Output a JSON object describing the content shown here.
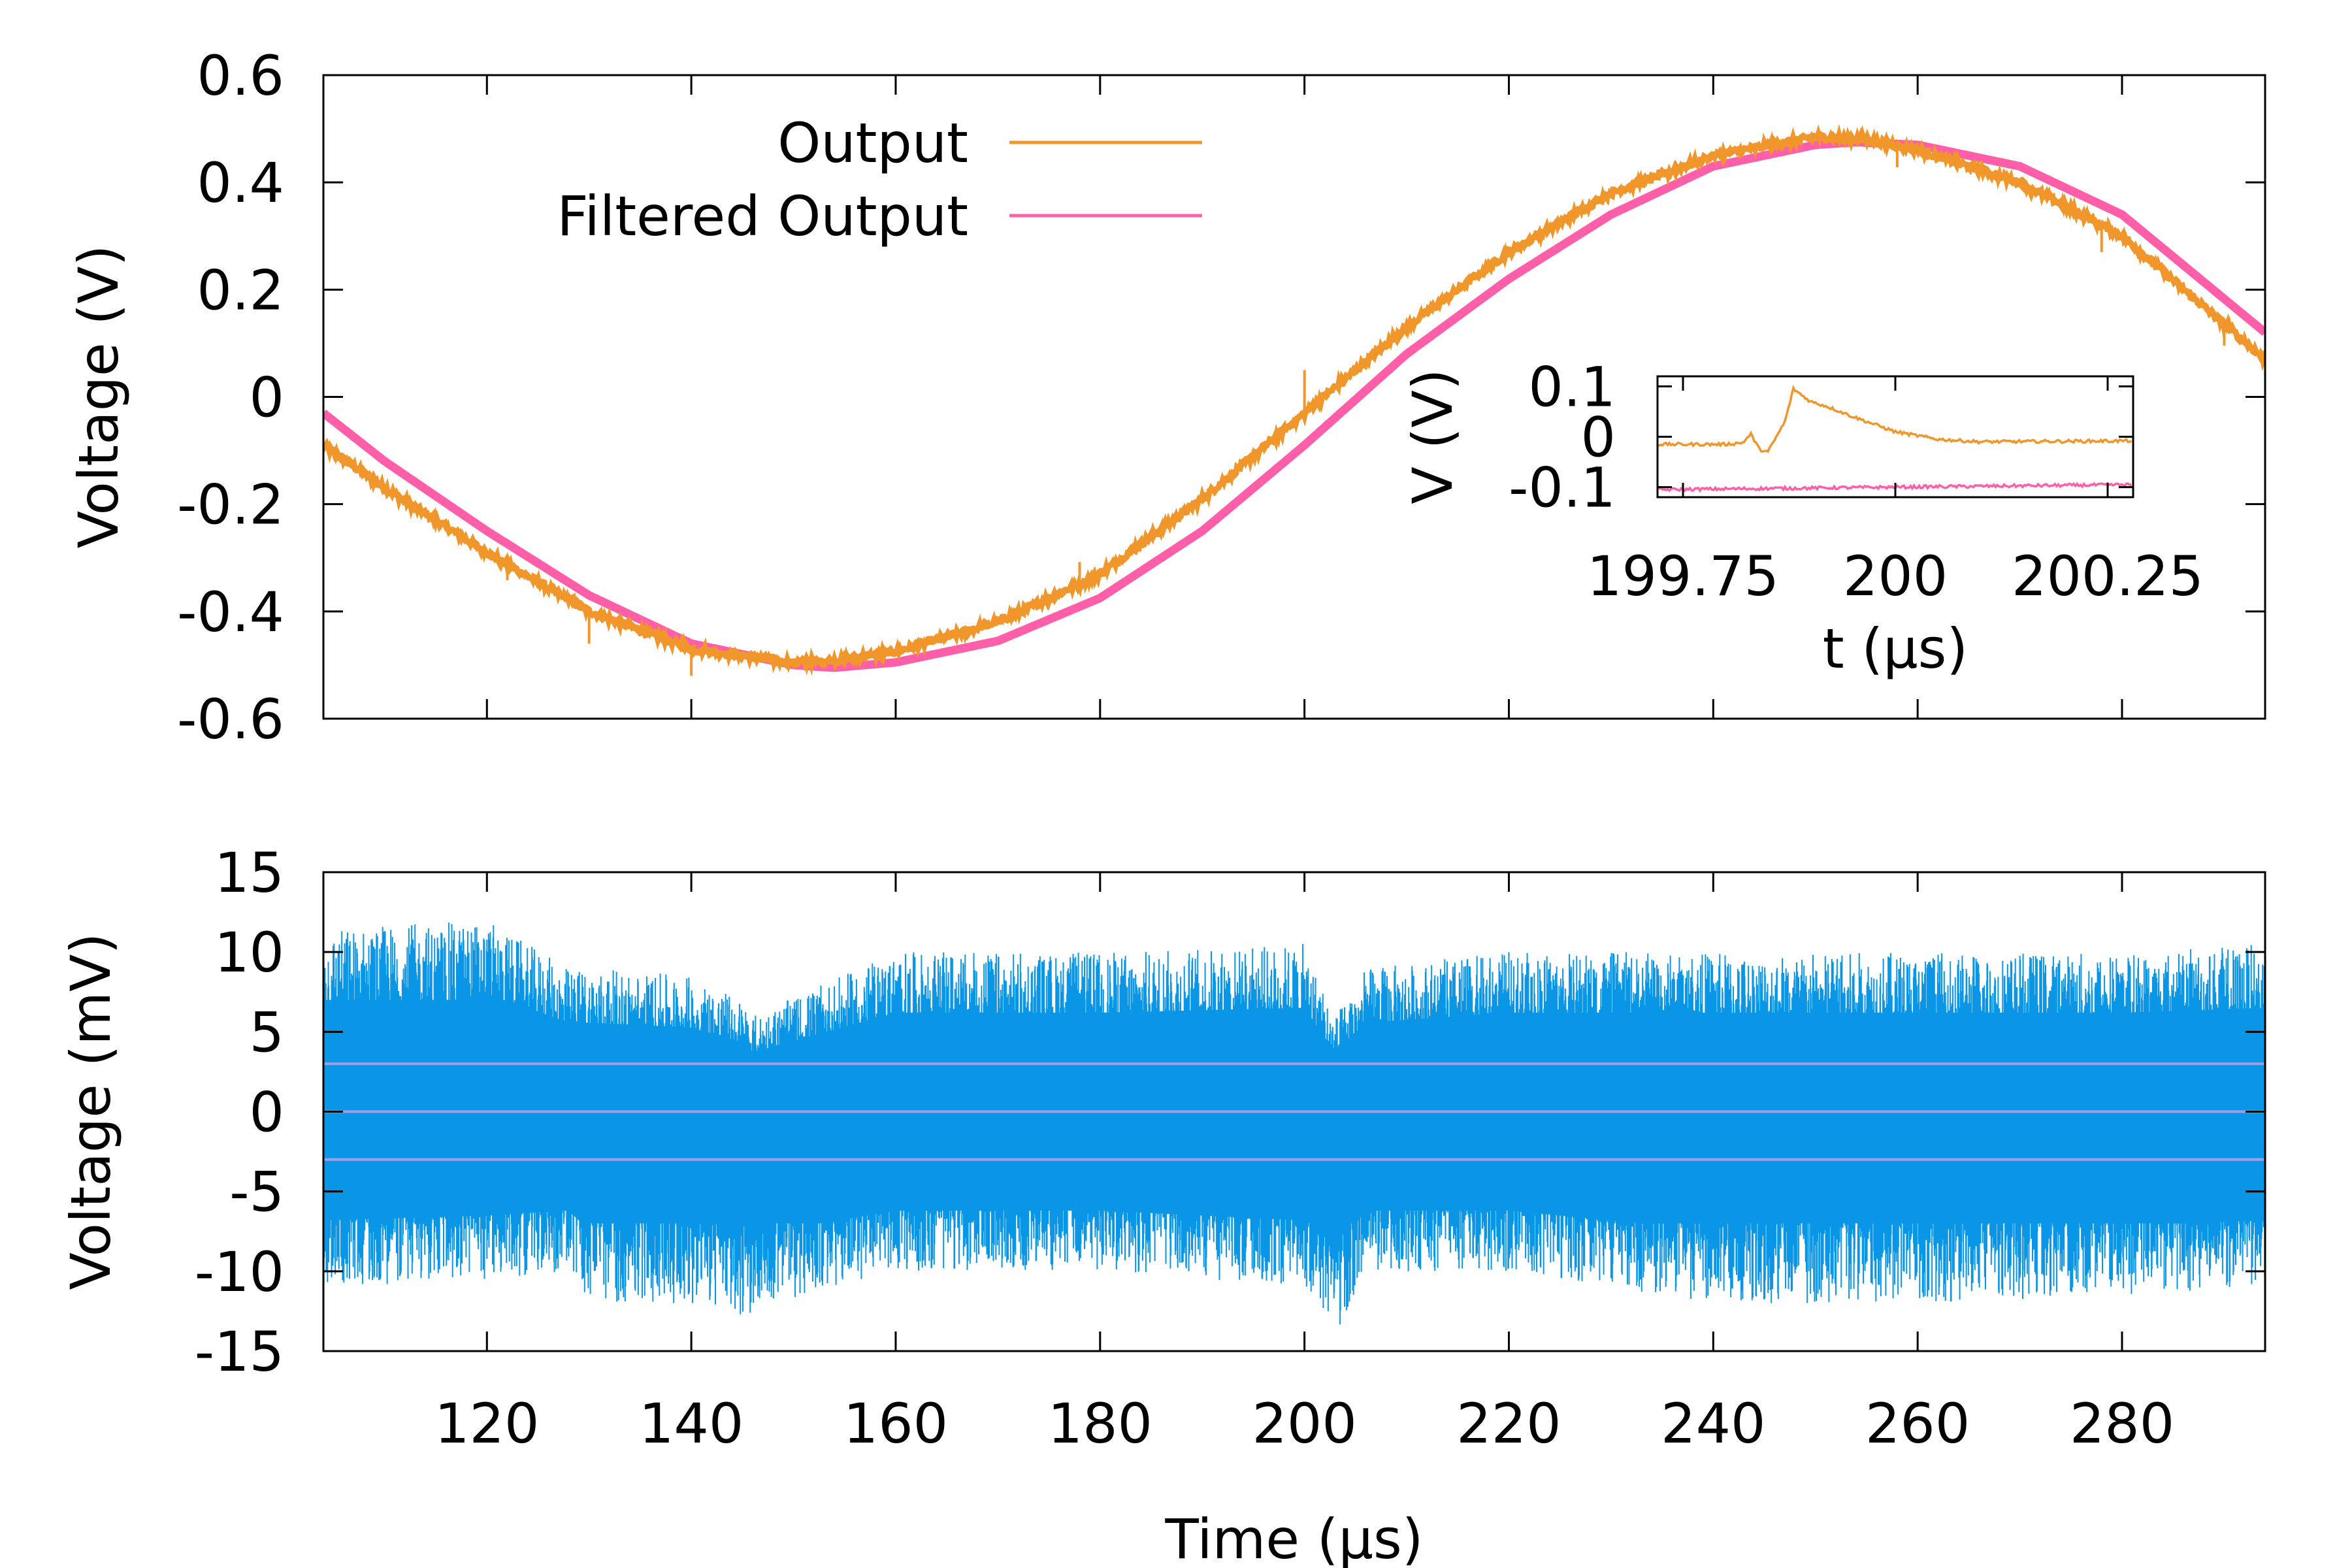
{
  "colors": {
    "output": "#f0962a",
    "filtered": "#ff5fa8",
    "noise": "#0a96e6",
    "noise_guides": "#a99ae6",
    "axis": "#000000"
  },
  "chart_data": [
    {
      "id": "top",
      "type": "line",
      "xlim": [
        104,
        294
      ],
      "ylim": [
        -0.6,
        0.6
      ],
      "xticks": [
        120,
        140,
        160,
        180,
        200,
        220,
        240,
        260,
        280
      ],
      "yticks": [
        -0.6,
        -0.4,
        -0.2,
        0,
        0.2,
        0.4,
        0.6
      ],
      "ytick_labels": [
        "-0.6",
        "-0.4",
        "-0.2",
        "0",
        "0.2",
        "0.4",
        "0.6"
      ],
      "xlabel": "",
      "ylabel": "Voltage (V)",
      "legend_position": "top-left",
      "grid": false,
      "series": [
        {
          "name": "Output",
          "color_key": "output",
          "x": [
            104,
            110,
            120,
            130,
            140,
            150,
            155,
            160,
            170,
            180,
            190,
            200,
            210,
            220,
            230,
            240,
            250,
            255,
            260,
            270,
            280,
            294
          ],
          "y": [
            -0.09,
            -0.17,
            -0.29,
            -0.4,
            -0.47,
            -0.495,
            -0.49,
            -0.475,
            -0.42,
            -0.33,
            -0.19,
            -0.03,
            0.13,
            0.27,
            0.38,
            0.45,
            0.485,
            0.48,
            0.46,
            0.4,
            0.3,
            0.07
          ],
          "spikes_x": [
            122,
            130,
            140,
            178,
            200,
            258,
            278,
            290
          ],
          "spikes_dy": [
            -0.03,
            -0.06,
            -0.05,
            0.04,
            0.08,
            -0.04,
            -0.05,
            -0.04
          ]
        },
        {
          "name": "Filtered Output",
          "color_key": "filtered",
          "x": [
            104,
            110,
            120,
            130,
            140,
            150,
            154,
            160,
            170,
            180,
            190,
            200,
            210,
            220,
            230,
            240,
            250,
            254,
            260,
            270,
            280,
            294
          ],
          "y": [
            -0.03,
            -0.12,
            -0.25,
            -0.37,
            -0.46,
            -0.5,
            -0.505,
            -0.495,
            -0.455,
            -0.375,
            -0.25,
            -0.09,
            0.08,
            0.22,
            0.34,
            0.43,
            0.47,
            0.475,
            0.47,
            0.43,
            0.34,
            0.12
          ]
        }
      ]
    },
    {
      "id": "inset",
      "type": "line",
      "xlim": [
        199.72,
        200.28
      ],
      "ylim": [
        -0.12,
        0.12
      ],
      "xticks": [
        199.75,
        200,
        200.25
      ],
      "xtick_labels": [
        "199.75",
        "200",
        "200.25"
      ],
      "yticks": [
        -0.1,
        0,
        0.1
      ],
      "ytick_labels": [
        "-0.1",
        "0",
        "0.1"
      ],
      "xlabel": "t (µs)",
      "ylabel": "V (V)",
      "series": [
        {
          "color_key": "output",
          "x": [
            199.72,
            199.8,
            199.82,
            199.83,
            199.84,
            199.85,
            199.86,
            199.87,
            199.88,
            199.9,
            199.92,
            199.95,
            200.0,
            200.05,
            200.1,
            200.28
          ],
          "y": [
            -0.015,
            -0.015,
            -0.012,
            0.005,
            -0.025,
            -0.03,
            0.0,
            0.03,
            0.095,
            0.07,
            0.06,
            0.04,
            0.01,
            -0.005,
            -0.01,
            -0.008
          ]
        },
        {
          "color_key": "filtered",
          "x": [
            199.72,
            200.28
          ],
          "y": [
            -0.105,
            -0.095
          ]
        }
      ]
    },
    {
      "id": "bottom",
      "type": "line",
      "xlim": [
        104,
        294
      ],
      "ylim": [
        -15,
        15
      ],
      "xticks": [
        120,
        140,
        160,
        180,
        200,
        220,
        240,
        260,
        280
      ],
      "xtick_labels": [
        "120",
        "140",
        "160",
        "180",
        "200",
        "220",
        "240",
        "260",
        "280"
      ],
      "yticks": [
        -15,
        -10,
        -5,
        0,
        5,
        10,
        15
      ],
      "ytick_labels": [
        "-15",
        "-10",
        "-5",
        "0",
        "5",
        "10",
        "15"
      ],
      "xlabel": "Time (µs)",
      "ylabel": "Voltage (mV)",
      "grid": false,
      "series": [
        {
          "color_key": "noise",
          "core_band_mV": 7,
          "peak_band_mV": 11,
          "x": [
            104,
            120,
            128,
            130,
            140,
            145,
            146,
            160,
            180,
            200,
            203,
            206,
            220,
            240,
            260,
            280,
            294
          ],
          "max": [
            11.5,
            12,
            9,
            9,
            8.5,
            7,
            6,
            10,
            10,
            10.5,
            6,
            9,
            10,
            10,
            10,
            10,
            10.5
          ],
          "min": [
            -11,
            -10.5,
            -10,
            -12,
            -12,
            -13,
            -12.5,
            -10,
            -10,
            -11,
            -14,
            -10,
            -10,
            -12,
            -12,
            -11.5,
            -11
          ]
        },
        {
          "name": "guides",
          "color_key": "noise_guides",
          "levels_mV": [
            -3,
            0,
            3
          ]
        }
      ]
    }
  ],
  "legend": {
    "items": [
      {
        "label": "Output",
        "color_key": "output"
      },
      {
        "label": "Filtered Output",
        "color_key": "filtered"
      }
    ]
  }
}
